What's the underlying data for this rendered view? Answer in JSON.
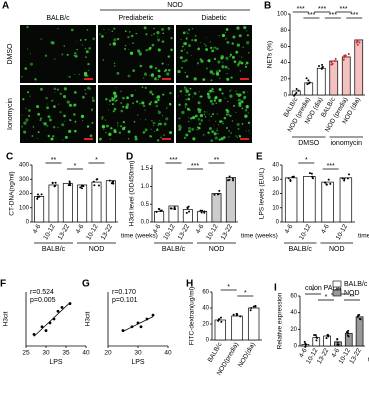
{
  "panel_a": {
    "letter": "A",
    "group": "NOD",
    "columns": [
      "BALB/c",
      "Prediabetic",
      "Diabetic"
    ],
    "rows": [
      "DMSO",
      "Ionomycin"
    ]
  },
  "chart_data": [
    {
      "type": "bar",
      "letter": "B",
      "ylabel": "NETs (%)",
      "categories": [
        "BALB/c",
        "NOD (predia)",
        "NOD (dia)",
        "BALB/c",
        "NOD (predia)",
        "NOD (dia)"
      ],
      "values": [
        5,
        15,
        33,
        42,
        47,
        68
      ],
      "bar_colors": [
        "#ffffff",
        "#ffffff",
        "#ffffff",
        "#f4c0c0",
        "#f4c0c0",
        "#f4c0c0"
      ],
      "groups": [
        "DMSO",
        "ionomycin"
      ],
      "ylim": [
        0,
        100
      ],
      "yticks": [
        0,
        20,
        40,
        60,
        80,
        100
      ],
      "annotations": [
        "***",
        "***",
        "***",
        "***",
        "***",
        "***"
      ]
    },
    {
      "type": "bar",
      "letter": "C",
      "ylabel": "CT-DNA(ng/ml)",
      "xlabel": "time (weeks)",
      "categories": [
        "4-6",
        "10-12",
        "13-22",
        "4-6",
        "10-12",
        "13-22"
      ],
      "values": [
        180,
        260,
        270,
        260,
        280,
        290
      ],
      "bar_colors": [
        "#ffffff",
        "#ffffff",
        "#ffffff",
        "#ffffff",
        "#ffffff",
        "#ffffff"
      ],
      "groups": [
        "BALB/c",
        "NOD"
      ],
      "ylim": [
        0,
        400
      ],
      "yticks": [
        0,
        100,
        200,
        300,
        400
      ],
      "annotations": [
        "**",
        "*",
        "*"
      ]
    },
    {
      "type": "bar",
      "letter": "D",
      "ylabel": "H3cit level (OD450nm)",
      "xlabel": "time (weeks)",
      "categories": [
        "4-6",
        "10-12",
        "13-22",
        "4-6",
        "10-12",
        "13-22"
      ],
      "values": [
        0.3,
        0.45,
        0.35,
        0.3,
        0.8,
        1.25
      ],
      "bar_colors": [
        "#ffffff",
        "#ffffff",
        "#ffffff",
        "#ffffff",
        "#cccccc",
        "#cccccc"
      ],
      "groups": [
        "BALB/c",
        "NOD"
      ],
      "ylim": [
        0,
        1.6
      ],
      "yticks": [
        {
          "value": 0,
          "label": "0.0"
        },
        0.5,
        {
          "value": 1,
          "label": "1.0"
        },
        1.5
      ],
      "annotations": [
        "***",
        "***",
        "**"
      ]
    },
    {
      "type": "bar",
      "letter": "E",
      "ylabel": "LPS levels (EU/L)",
      "xlabel": "time (weeks)",
      "categories": [
        "4-6",
        "10-12",
        "4-6",
        "10-12"
      ],
      "values": [
        31,
        32,
        28,
        31
      ],
      "bar_colors": [
        "#ffffff",
        "#ffffff",
        "#ffffff",
        "#ffffff"
      ],
      "groups": [
        "BALB/c",
        "NOD"
      ],
      "ylim": [
        0,
        40
      ],
      "yticks": [
        0,
        10,
        20,
        30,
        40
      ],
      "annotations": [
        "*",
        "***"
      ]
    },
    {
      "type": "scatter",
      "letter": "F",
      "xlabel": "LPS",
      "ylabel": "H3cit",
      "annotations": [
        "r=0.524",
        "p=0.005"
      ],
      "x": [
        27,
        29,
        30,
        31,
        32,
        33,
        34,
        36
      ],
      "y": [
        0.3,
        0.5,
        0.4,
        0.6,
        0.7,
        0.9,
        1.0,
        1.1
      ],
      "xlim": [
        25,
        40
      ],
      "xticks": [
        25,
        30,
        35,
        40
      ],
      "ylim": [
        0,
        1.4
      ]
    },
    {
      "type": "scatter",
      "letter": "G",
      "xlabel": "LPS",
      "ylabel": "H3cit",
      "annotations": [
        "r=0.170",
        "p=0.101"
      ],
      "x": [
        25,
        28,
        30,
        31,
        33,
        35
      ],
      "y": [
        0.4,
        0.5,
        0.6,
        0.5,
        0.7,
        0.8
      ],
      "xlim": [
        20,
        40
      ],
      "xticks": [
        20,
        30,
        40
      ],
      "ylim": [
        0,
        1.4
      ]
    },
    {
      "type": "bar",
      "letter": "H",
      "ylabel": "FITC-dextran(ug/ml)",
      "categories": [
        "BALB/c",
        "NOD(predia)",
        "NOD(dia)"
      ],
      "values": [
        25,
        30,
        40
      ],
      "bar_colors": [
        "#ffffff",
        "#ffffff",
        "#ffffff"
      ],
      "ylim": [
        0,
        60
      ],
      "yticks": [
        0,
        20,
        40,
        60
      ],
      "annotations": [
        "*",
        "*"
      ]
    },
    {
      "type": "bar",
      "letter": "I",
      "title": "colon PAD4",
      "ylabel": "Relative expression",
      "xlabel": "time (weeks)",
      "categories": [
        "4-6",
        "10-12",
        "13-22",
        "4-6",
        "10-12",
        "13-22"
      ],
      "values": [
        2,
        10,
        12,
        5,
        15,
        35
      ],
      "bar_colors": [
        "#ffffff",
        "#ffffff",
        "#ffffff",
        "#999999",
        "#999999",
        "#999999"
      ],
      "legend": [
        {
          "name": "BALB/c",
          "color": "#ffffff"
        },
        {
          "name": "NOD",
          "color": "#999999"
        }
      ],
      "ylim": [
        0,
        60
      ],
      "yticks": [
        0,
        20,
        40,
        60
      ],
      "annotations": [
        "*",
        "*",
        "**",
        "**"
      ]
    }
  ]
}
